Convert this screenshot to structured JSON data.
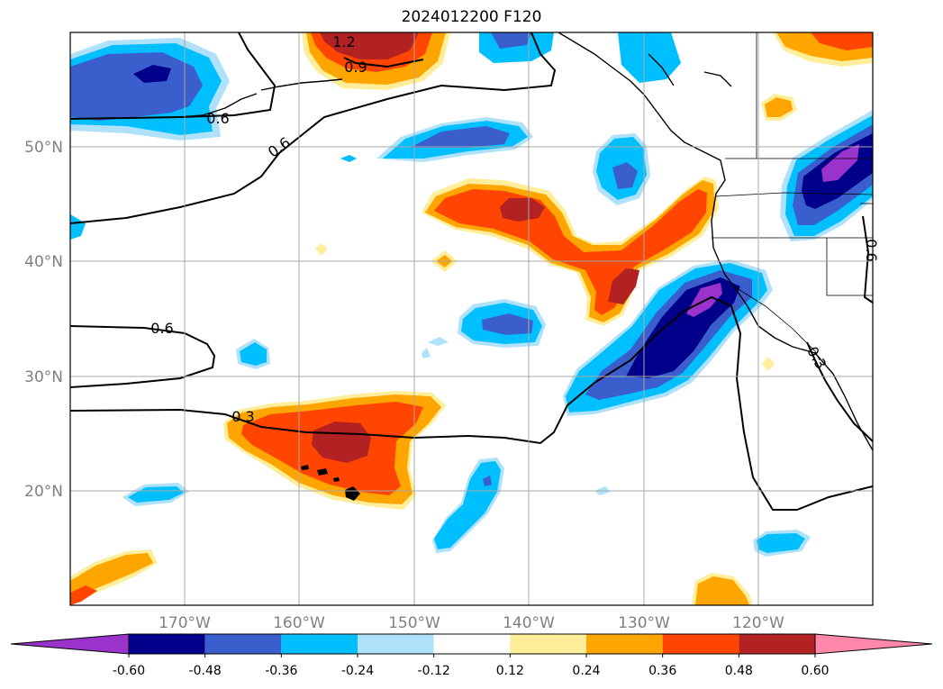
{
  "title": "2024012200 F120",
  "map": {
    "lon_ticks": [
      {
        "label": "170°W"
      },
      {
        "label": "160°W"
      },
      {
        "label": "150°W"
      },
      {
        "label": "140°W"
      },
      {
        "label": "130°W"
      },
      {
        "label": "120°W"
      }
    ],
    "lat_ticks": [
      {
        "label": "20°N"
      },
      {
        "label": "30°N"
      },
      {
        "label": "40°N"
      },
      {
        "label": "50°N"
      }
    ],
    "contour_labels": [
      "1.2",
      "0.9",
      "0.6",
      "0.6",
      "0.6",
      "0.3",
      "0.6",
      "0.3"
    ],
    "gridlines": true,
    "coastlines": true
  },
  "colorbar": {
    "levels": [
      "-0.60",
      "-0.48",
      "-0.36",
      "-0.24",
      "-0.12",
      "0.12",
      "0.24",
      "0.36",
      "0.48",
      "0.60"
    ],
    "colors": [
      "#9933cc",
      "#00008b",
      "#3a5fcd",
      "#00bfff",
      "#afe1fa",
      "#ffffff",
      "#ffee99",
      "#ffa500",
      "#ff4500",
      "#b22222",
      "#ff88aa"
    ]
  }
}
